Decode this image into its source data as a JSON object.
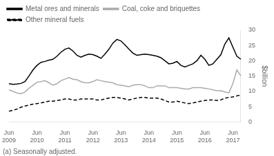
{
  "chart_data": {
    "type": "line",
    "ylabel": "$billion",
    "footnote": "(a) Seasonally adjusted.",
    "categories": [
      "Jun\n2009",
      null,
      null,
      null,
      null,
      null,
      null,
      "Jun\n2010",
      null,
      null,
      null,
      null,
      null,
      null,
      "Jun\n2011",
      null,
      null,
      null,
      null,
      null,
      null,
      "Jun\n2012",
      null,
      null,
      null,
      null,
      null,
      null,
      "Jun\n2013",
      null,
      null,
      null,
      null,
      null,
      null,
      "Jun\n2014",
      null,
      null,
      null,
      null,
      null,
      null,
      "Jun\n2015",
      null,
      null,
      null,
      null,
      null,
      null,
      "Jun\n2016",
      null,
      null,
      null,
      null,
      null,
      null,
      "Jun\n2017",
      null,
      null
    ],
    "series": [
      {
        "name": "Metal ores and minerals",
        "color": "#000000",
        "line_style": "solid",
        "values": [
          12.5,
          12.3,
          12.4,
          12.6,
          13.2,
          15.0,
          17.0,
          18.5,
          19.5,
          19.8,
          20.2,
          20.5,
          21.5,
          22.8,
          23.8,
          24.2,
          23.2,
          21.8,
          21.2,
          21.8,
          22.2,
          22.0,
          21.5,
          20.8,
          22.2,
          23.8,
          25.8,
          27.0,
          26.5,
          25.2,
          23.8,
          22.5,
          21.8,
          22.0,
          22.2,
          22.0,
          21.8,
          21.5,
          21.0,
          20.0,
          19.0,
          19.2,
          19.8,
          18.5,
          18.0,
          18.5,
          19.0,
          20.0,
          21.8,
          20.5,
          18.5,
          19.0,
          20.5,
          22.0,
          25.5,
          27.5,
          24.5,
          21.5,
          20.5
        ]
      },
      {
        "name": "Coal, coke and briquettes",
        "color": "#aaaaaa",
        "line_style": "solid",
        "values": [
          10.5,
          10.0,
          9.5,
          9.2,
          9.8,
          11.0,
          12.0,
          13.0,
          13.2,
          13.5,
          12.8,
          12.0,
          12.5,
          13.5,
          14.0,
          14.5,
          14.0,
          13.8,
          13.2,
          12.8,
          12.8,
          13.2,
          13.8,
          13.5,
          13.2,
          13.0,
          12.8,
          12.2,
          12.0,
          11.8,
          11.5,
          12.0,
          12.2,
          12.2,
          11.8,
          11.2,
          11.2,
          11.8,
          11.8,
          11.8,
          11.2,
          11.2,
          11.2,
          11.0,
          10.8,
          10.8,
          11.2,
          11.2,
          11.2,
          11.0,
          10.8,
          10.5,
          10.2,
          10.2,
          9.8,
          9.5,
          12.5,
          17.0,
          15.0
        ]
      },
      {
        "name": "Other mineral fuels",
        "color": "#000000",
        "line_style": "dashed",
        "values": [
          3.5,
          3.8,
          4.2,
          4.8,
          5.2,
          5.5,
          5.8,
          6.0,
          6.2,
          6.5,
          6.8,
          6.8,
          7.0,
          7.2,
          7.5,
          7.5,
          7.2,
          7.2,
          7.5,
          7.5,
          7.5,
          7.5,
          7.2,
          7.2,
          7.5,
          7.8,
          8.0,
          8.0,
          7.8,
          7.5,
          7.2,
          7.5,
          7.8,
          8.0,
          8.0,
          7.8,
          7.8,
          7.8,
          7.5,
          7.0,
          6.5,
          6.5,
          6.8,
          6.5,
          6.2,
          6.0,
          6.2,
          6.5,
          6.8,
          7.0,
          7.2,
          7.2,
          7.0,
          7.2,
          7.8,
          8.0,
          8.2,
          8.5,
          8.8
        ]
      }
    ],
    "ylim": [
      0,
      30
    ],
    "yticks": [
      0,
      5,
      10,
      15,
      20,
      25,
      30
    ],
    "grid": false,
    "legend": "top"
  }
}
